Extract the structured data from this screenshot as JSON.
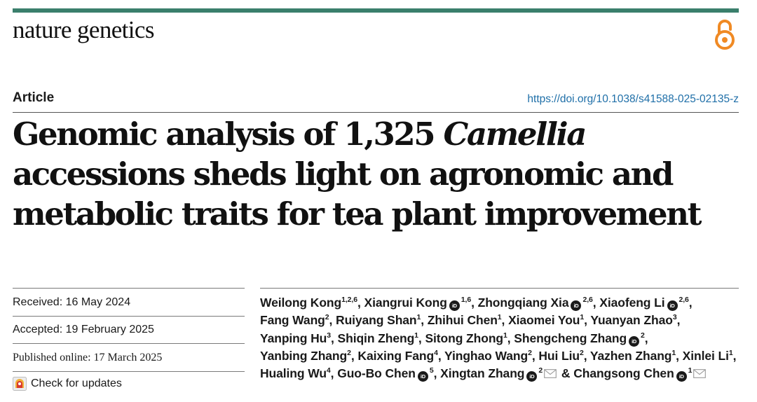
{
  "header": {
    "journal_name": "nature genetics",
    "open_access_icon": "open-access-icon",
    "accent_color": "#3a7f6c"
  },
  "article": {
    "type": "Article",
    "doi": "https://doi.org/10.1038/s41588-025-02135-z",
    "title": {
      "line1_pre": "Genomic analysis of 1,325 ",
      "line1_italic": "Camellia",
      "line2": "accessions sheds light on agronomic and",
      "line3": "metabolic traits for tea plant improvement"
    }
  },
  "meta": {
    "received": "Received: 16 May 2024",
    "accepted": "Accepted: 19 February 2025",
    "published": "Published online: 17 March 2025",
    "check_updates": "Check for updates"
  },
  "authors": [
    {
      "name": "Weilong Kong",
      "sup": "1,2,6",
      "orcid": false,
      "email": false,
      "sep": ","
    },
    {
      "name": "Xiangrui Kong",
      "sup": "1,6",
      "orcid": true,
      "email": false,
      "sep": ","
    },
    {
      "name": "Zhongqiang Xia",
      "sup": "2,6",
      "orcid": true,
      "email": false,
      "sep": ","
    },
    {
      "name": "Xiaofeng Li",
      "sup": "2,6",
      "orcid": true,
      "email": false,
      "sep": ","
    },
    {
      "name": "Fang Wang",
      "sup": "2",
      "orcid": false,
      "email": false,
      "sep": ","
    },
    {
      "name": "Ruiyang Shan",
      "sup": "1",
      "orcid": false,
      "email": false,
      "sep": ","
    },
    {
      "name": "Zhihui Chen",
      "sup": "1",
      "orcid": false,
      "email": false,
      "sep": ","
    },
    {
      "name": "Xiaomei You",
      "sup": "1",
      "orcid": false,
      "email": false,
      "sep": ","
    },
    {
      "name": "Yuanyan Zhao",
      "sup": "3",
      "orcid": false,
      "email": false,
      "sep": ","
    },
    {
      "name": "Yanping Hu",
      "sup": "3",
      "orcid": false,
      "email": false,
      "sep": ","
    },
    {
      "name": "Shiqin Zheng",
      "sup": "1",
      "orcid": false,
      "email": false,
      "sep": ","
    },
    {
      "name": "Sitong Zhong",
      "sup": "1",
      "orcid": false,
      "email": false,
      "sep": ","
    },
    {
      "name": "Shengcheng Zhang",
      "sup": "2",
      "orcid": true,
      "email": false,
      "sep": ","
    },
    {
      "name": "Yanbing Zhang",
      "sup": "2",
      "orcid": false,
      "email": false,
      "sep": ","
    },
    {
      "name": "Kaixing Fang",
      "sup": "4",
      "orcid": false,
      "email": false,
      "sep": ","
    },
    {
      "name": "Yinghao Wang",
      "sup": "2",
      "orcid": false,
      "email": false,
      "sep": ","
    },
    {
      "name": "Hui Liu",
      "sup": "2",
      "orcid": false,
      "email": false,
      "sep": ","
    },
    {
      "name": "Yazhen Zhang",
      "sup": "1",
      "orcid": false,
      "email": false,
      "sep": ","
    },
    {
      "name": "Xinlei Li",
      "sup": "1",
      "orcid": false,
      "email": false,
      "sep": ","
    },
    {
      "name": "Hualing Wu",
      "sup": "4",
      "orcid": false,
      "email": false,
      "sep": ","
    },
    {
      "name": "Guo-Bo Chen",
      "sup": "5",
      "orcid": true,
      "email": false,
      "sep": ","
    },
    {
      "name": "Xingtan Zhang",
      "sup": "2",
      "orcid": true,
      "email": true,
      "sep": " &"
    },
    {
      "name": "Changsong Chen",
      "sup": "1",
      "orcid": true,
      "email": true,
      "sep": ""
    }
  ],
  "orcid_badge_text": "iD"
}
